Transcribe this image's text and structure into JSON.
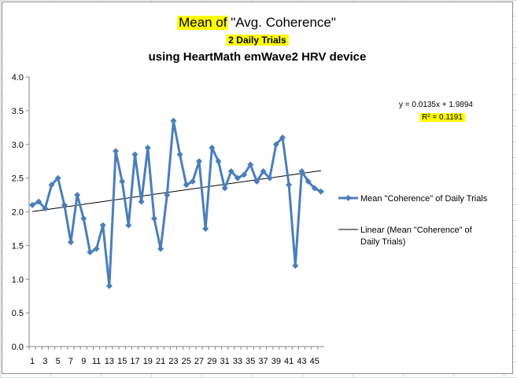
{
  "chart_data": {
    "type": "line",
    "title_parts": [
      {
        "text": "Mean of",
        "highlight": true
      },
      {
        "text": " \"Avg. Coherence\"",
        "highlight": false
      }
    ],
    "subtitle": "2 Daily Trials",
    "subtitle2": "using HeartMath emWave2 HRV device",
    "xlabel": "",
    "ylabel": "",
    "ylim": [
      0,
      4
    ],
    "yticks": [
      "0.0",
      "0.5",
      "1.0",
      "1.5",
      "2.0",
      "2.5",
      "3.0",
      "3.5",
      "4.0"
    ],
    "xticks": [
      "1",
      "3",
      "5",
      "7",
      "9",
      "11",
      "13",
      "15",
      "17",
      "19",
      "21",
      "23",
      "25",
      "27",
      "29",
      "31",
      "33",
      "35",
      "37",
      "39",
      "41",
      "43",
      "45"
    ],
    "x": [
      1,
      2,
      3,
      4,
      5,
      6,
      7,
      8,
      9,
      10,
      11,
      12,
      13,
      14,
      15,
      16,
      17,
      18,
      19,
      20,
      21,
      22,
      23,
      24,
      25,
      26,
      27,
      28,
      29,
      30,
      31,
      32,
      33,
      34,
      35,
      36,
      37,
      38,
      39,
      40,
      41,
      42,
      43,
      44,
      45,
      46
    ],
    "series": [
      {
        "name": "Mean \"Coherence\" of Daily Trials",
        "color": "#4a7ebb",
        "values": [
          2.1,
          2.15,
          2.05,
          2.4,
          2.5,
          2.1,
          1.55,
          2.25,
          1.9,
          1.4,
          1.45,
          1.8,
          0.9,
          2.9,
          2.45,
          1.8,
          2.85,
          2.15,
          2.95,
          1.9,
          1.45,
          2.25,
          3.35,
          2.85,
          2.4,
          2.45,
          2.75,
          1.75,
          2.95,
          2.75,
          2.35,
          2.6,
          2.5,
          2.55,
          2.7,
          2.45,
          2.6,
          2.5,
          3.0,
          3.1,
          2.4,
          1.2,
          2.6,
          2.45,
          2.35,
          2.3
        ]
      }
    ],
    "trendline": {
      "name": "Linear (Mean \"Coherence\" of Daily Trials)",
      "slope": 0.0135,
      "intercept": 1.9894,
      "equation": "y = 0.0135x + 1.9894",
      "r2_label": "R² = 0.1191"
    },
    "legend_entries": [
      {
        "label": "Mean \"Coherence\" of Daily Trials"
      },
      {
        "label_lines": [
          "Linear (Mean \"Coherence\" of",
          "Daily Trials)"
        ]
      }
    ],
    "legend_position": "right",
    "grid": false,
    "highlight_color": "#ffff00"
  }
}
